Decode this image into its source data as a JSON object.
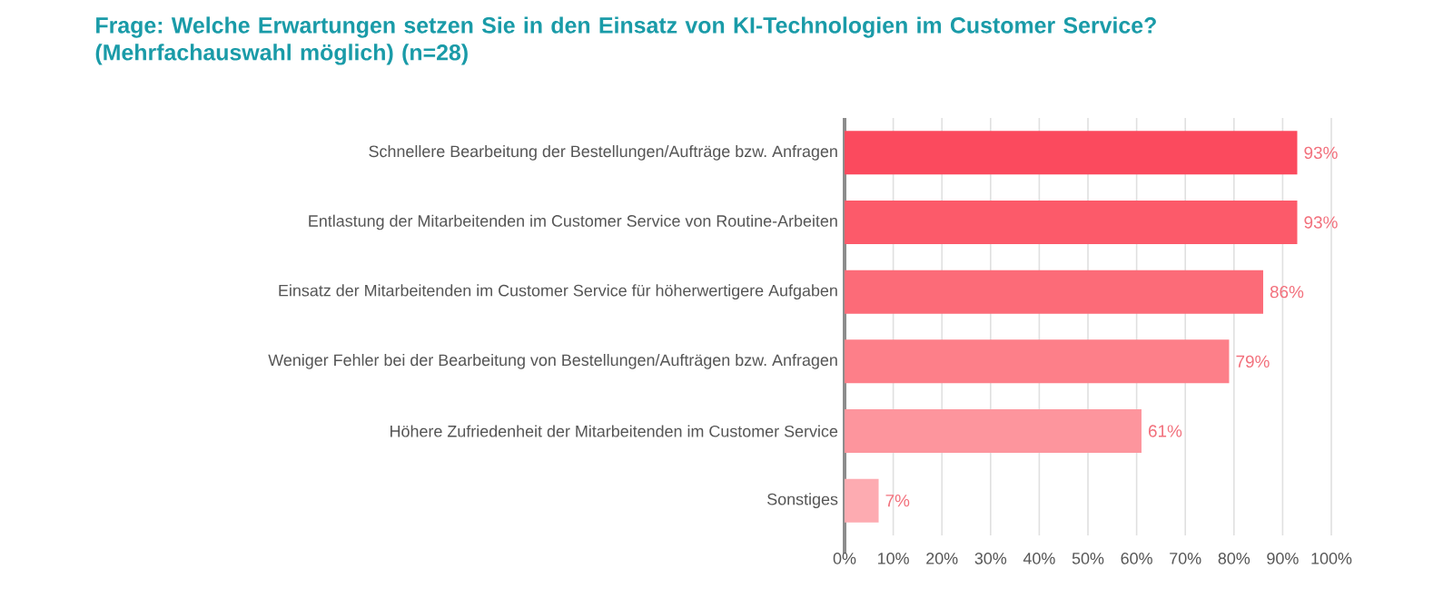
{
  "chart_data": {
    "type": "bar",
    "orientation": "horizontal",
    "title": "Frage: Welche Erwartungen setzen Sie in den Einsatz von KI-Technologien im Customer Service? (Mehrfachauswahl möglich) (n=28)",
    "categories": [
      "Schnellere Bearbeitung der Bestellungen/Aufträge bzw. Anfragen",
      "Entlastung der Mitarbeitenden im Customer Service von Routine-Arbeiten",
      "Einsatz der Mitarbeitenden im Customer Service für höherwertigere Aufgaben",
      "Weniger Fehler bei der Bearbeitung von Bestellungen/Aufträgen bzw. Anfragen",
      "Höhere Zufriedenheit der Mitarbeitenden im Customer Service",
      "Sonstiges"
    ],
    "values": [
      93,
      93,
      86,
      79,
      61,
      7
    ],
    "value_labels": [
      "93%",
      "93%",
      "86%",
      "79%",
      "61%",
      "7%"
    ],
    "colors": [
      "#fb4a5e",
      "#fc5a6a",
      "#fc6b78",
      "#fd7f89",
      "#fd959d",
      "#fdabb1"
    ],
    "xlim": [
      0,
      100
    ],
    "xticks": [
      {
        "value": 0,
        "label": "0%"
      },
      {
        "value": 10,
        "label": "10%"
      },
      {
        "value": 20,
        "label": "20%"
      },
      {
        "value": 30,
        "label": "30%"
      },
      {
        "value": 40,
        "label": "40%"
      },
      {
        "value": 50,
        "label": "50%"
      },
      {
        "value": 60,
        "label": "60%"
      },
      {
        "value": 70,
        "label": "70%"
      },
      {
        "value": 80,
        "label": "80%"
      },
      {
        "value": 90,
        "label": "90%"
      },
      {
        "value": 100,
        "label": "100%"
      }
    ],
    "grid": "x"
  }
}
